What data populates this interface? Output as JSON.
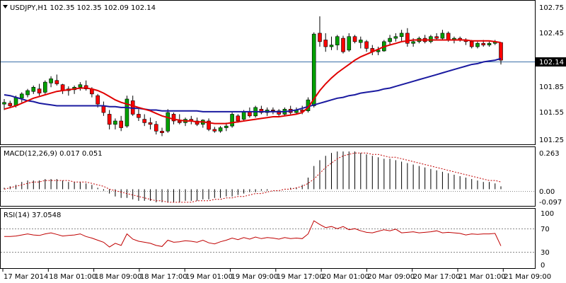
{
  "header": {
    "main": "USDJPY,H1  102.35 102.35 102.09 102.14",
    "macd": "MACD(12,26,9) 0.017 0.051",
    "rsi": "RSI(14) 37.0548"
  },
  "price_axis": {
    "ticks": [
      "102.75",
      "102.45",
      "101.85",
      "101.55",
      "101.25"
    ],
    "current": "102.14"
  },
  "macd_axis": {
    "ticks": [
      "0.263",
      "0.00",
      "-0.097"
    ]
  },
  "rsi_axis": {
    "ticks": [
      "100",
      "70",
      "30",
      "0"
    ]
  },
  "time_axis": {
    "labels": [
      "17 Mar 2014",
      "18 Mar 01:00",
      "18 Mar 09:00",
      "18 Mar 17:00",
      "19 Mar 01:00",
      "19 Mar 09:00",
      "19 Mar 17:00",
      "20 Mar 01:00",
      "20 Mar 09:00",
      "20 Mar 17:00",
      "21 Mar 01:00",
      "21 Mar 09:00"
    ]
  },
  "colors": {
    "bull": "#00a000",
    "bear": "#ff0000",
    "wick": "#000000",
    "ma_fast": "#e00000",
    "ma_slow": "#1a1aa0",
    "macd_hist": "#000000",
    "macd_signal": "#c00000",
    "rsi": "#c00000",
    "grid": "#888888",
    "current_line": "#3c6fa8"
  },
  "chart_data": [
    {
      "type": "candlestick",
      "symbol": "USDJPY,H1",
      "ylim": [
        101.16,
        102.82
      ],
      "candles": [
        [
          101.62,
          101.68,
          101.55,
          101.64
        ],
        [
          101.63,
          101.66,
          101.57,
          101.6
        ],
        [
          101.6,
          101.72,
          101.58,
          101.7
        ],
        [
          101.69,
          101.76,
          101.64,
          101.74
        ],
        [
          101.73,
          101.8,
          101.7,
          101.78
        ],
        [
          101.77,
          101.84,
          101.74,
          101.82
        ],
        [
          101.8,
          101.86,
          101.72,
          101.75
        ],
        [
          101.76,
          101.9,
          101.74,
          101.88
        ],
        [
          101.87,
          101.95,
          101.82,
          101.92
        ],
        [
          101.9,
          101.97,
          101.84,
          101.86
        ],
        [
          101.85,
          101.86,
          101.74,
          101.78
        ],
        [
          101.78,
          101.83,
          101.72,
          101.8
        ],
        [
          101.79,
          101.84,
          101.74,
          101.82
        ],
        [
          101.82,
          101.88,
          101.78,
          101.85
        ],
        [
          101.84,
          101.9,
          101.78,
          101.8
        ],
        [
          101.8,
          101.82,
          101.7,
          101.74
        ],
        [
          101.72,
          101.74,
          101.58,
          101.62
        ],
        [
          101.6,
          101.65,
          101.48,
          101.52
        ],
        [
          101.5,
          101.55,
          101.32,
          101.38
        ],
        [
          101.38,
          101.45,
          101.32,
          101.42
        ],
        [
          101.42,
          101.48,
          101.3,
          101.34
        ],
        [
          101.36,
          101.72,
          101.34,
          101.68
        ],
        [
          101.66,
          101.72,
          101.48,
          101.5
        ],
        [
          101.5,
          101.56,
          101.42,
          101.46
        ],
        [
          101.44,
          101.5,
          101.36,
          101.4
        ],
        [
          101.4,
          101.46,
          101.32,
          101.38
        ],
        [
          101.38,
          101.42,
          101.26,
          101.3
        ],
        [
          101.3,
          101.34,
          101.24,
          101.28
        ],
        [
          101.3,
          101.56,
          101.28,
          101.52
        ],
        [
          101.5,
          101.52,
          101.38,
          101.42
        ],
        [
          101.42,
          101.5,
          101.38,
          101.4
        ],
        [
          101.4,
          101.46,
          101.36,
          101.44
        ],
        [
          101.44,
          101.48,
          101.38,
          101.42
        ],
        [
          101.42,
          101.46,
          101.36,
          101.38
        ],
        [
          101.38,
          101.44,
          101.34,
          101.43
        ],
        [
          101.42,
          101.45,
          101.3,
          101.32
        ],
        [
          101.32,
          101.35,
          101.28,
          101.3
        ],
        [
          101.3,
          101.36,
          101.28,
          101.34
        ],
        [
          101.34,
          101.4,
          101.3,
          101.36
        ],
        [
          101.36,
          101.52,
          101.34,
          101.5
        ],
        [
          101.48,
          101.5,
          101.4,
          101.42
        ],
        [
          101.44,
          101.55,
          101.42,
          101.53
        ],
        [
          101.53,
          101.58,
          101.46,
          101.48
        ],
        [
          101.48,
          101.6,
          101.46,
          101.58
        ],
        [
          101.56,
          101.6,
          101.5,
          101.52
        ],
        [
          101.52,
          101.58,
          101.48,
          101.55
        ],
        [
          101.55,
          101.58,
          101.5,
          101.54
        ],
        [
          101.54,
          101.56,
          101.48,
          101.5
        ],
        [
          101.5,
          101.58,
          101.48,
          101.56
        ],
        [
          101.56,
          101.6,
          101.5,
          101.52
        ],
        [
          101.52,
          101.58,
          101.5,
          101.55
        ],
        [
          101.55,
          101.6,
          101.5,
          101.53
        ],
        [
          101.54,
          101.7,
          101.52,
          101.67
        ],
        [
          101.6,
          102.47,
          101.58,
          102.45
        ],
        [
          102.46,
          102.66,
          102.3,
          102.36
        ],
        [
          102.38,
          102.46,
          102.24,
          102.3
        ],
        [
          102.3,
          102.42,
          102.26,
          102.32
        ],
        [
          102.32,
          102.44,
          102.26,
          102.42
        ],
        [
          102.4,
          102.43,
          102.22,
          102.24
        ],
        [
          102.26,
          102.46,
          102.24,
          102.42
        ],
        [
          102.42,
          102.44,
          102.34,
          102.36
        ],
        [
          102.35,
          102.42,
          102.28,
          102.38
        ],
        [
          102.36,
          102.38,
          102.24,
          102.28
        ],
        [
          102.28,
          102.32,
          102.2,
          102.24
        ],
        [
          102.24,
          102.3,
          102.2,
          102.26
        ],
        [
          102.25,
          102.38,
          102.24,
          102.36
        ],
        [
          102.36,
          102.44,
          102.32,
          102.4
        ],
        [
          102.4,
          102.46,
          102.36,
          102.42
        ],
        [
          102.42,
          102.5,
          102.36,
          102.46
        ],
        [
          102.46,
          102.52,
          102.3,
          102.34
        ],
        [
          102.34,
          102.4,
          102.3,
          102.36
        ],
        [
          102.36,
          102.42,
          102.34,
          102.4
        ],
        [
          102.4,
          102.44,
          102.34,
          102.36
        ],
        [
          102.36,
          102.44,
          102.34,
          102.42
        ],
        [
          102.42,
          102.46,
          102.38,
          102.4
        ],
        [
          102.4,
          102.5,
          102.38,
          102.46
        ],
        [
          102.46,
          102.48,
          102.36,
          102.38
        ],
        [
          102.38,
          102.42,
          102.34,
          102.4
        ],
        [
          102.4,
          102.42,
          102.36,
          102.38
        ],
        [
          102.38,
          102.4,
          102.32,
          102.36
        ],
        [
          102.36,
          102.38,
          102.28,
          102.3
        ],
        [
          102.3,
          102.36,
          102.28,
          102.34
        ],
        [
          102.34,
          102.38,
          102.3,
          102.32
        ],
        [
          102.32,
          102.36,
          102.3,
          102.34
        ],
        [
          102.34,
          102.38,
          102.32,
          102.36
        ],
        [
          102.35,
          102.35,
          102.09,
          102.14
        ]
      ],
      "ma_fast": [
        101.56,
        101.58,
        101.6,
        101.63,
        101.66,
        101.69,
        101.71,
        101.73,
        101.75,
        101.77,
        101.78,
        101.79,
        101.8,
        101.81,
        101.81,
        101.8,
        101.78,
        101.75,
        101.71,
        101.67,
        101.64,
        101.62,
        101.6,
        101.58,
        101.56,
        101.54,
        101.51,
        101.48,
        101.46,
        101.44,
        101.43,
        101.42,
        101.42,
        101.41,
        101.41,
        101.4,
        101.39,
        101.39,
        101.39,
        101.4,
        101.41,
        101.42,
        101.43,
        101.44,
        101.45,
        101.46,
        101.47,
        101.47,
        101.48,
        101.49,
        101.5,
        101.52,
        101.58,
        101.68,
        101.78,
        101.86,
        101.93,
        101.99,
        102.04,
        102.09,
        102.14,
        102.18,
        102.21,
        102.24,
        102.27,
        102.3,
        102.32,
        102.34,
        102.36,
        102.37,
        102.38,
        102.38,
        102.38,
        102.38,
        102.38,
        102.38,
        102.38,
        102.38,
        102.38,
        102.38,
        102.37,
        102.37,
        102.37,
        102.37,
        102.36,
        102.35
      ],
      "ma_slow": [
        101.73,
        101.72,
        101.7,
        101.68,
        101.66,
        101.65,
        101.63,
        101.62,
        101.61,
        101.6,
        101.6,
        101.6,
        101.6,
        101.6,
        101.6,
        101.6,
        101.6,
        101.6,
        101.59,
        101.59,
        101.58,
        101.58,
        101.57,
        101.57,
        101.56,
        101.55,
        101.55,
        101.54,
        101.54,
        101.54,
        101.54,
        101.54,
        101.54,
        101.54,
        101.53,
        101.53,
        101.53,
        101.53,
        101.53,
        101.53,
        101.53,
        101.53,
        101.53,
        101.53,
        101.53,
        101.53,
        101.53,
        101.53,
        101.53,
        101.54,
        101.55,
        101.57,
        101.59,
        101.61,
        101.63,
        101.65,
        101.67,
        101.69,
        101.7,
        101.72,
        101.73,
        101.75,
        101.76,
        101.77,
        101.78,
        101.8,
        101.81,
        101.83,
        101.85,
        101.87,
        101.89,
        101.91,
        101.93,
        101.95,
        101.97,
        101.99,
        102.01,
        102.03,
        102.05,
        102.07,
        102.09,
        102.1,
        102.12,
        102.13,
        102.14,
        102.16
      ]
    },
    {
      "type": "macd",
      "params": "12,26,9",
      "ylim": [
        -0.11,
        0.28
      ],
      "histogram": [
        0.01,
        0.02,
        0.03,
        0.05,
        0.06,
        0.06,
        0.06,
        0.07,
        0.07,
        0.07,
        0.06,
        0.05,
        0.05,
        0.05,
        0.04,
        0.03,
        0.01,
        -0.01,
        -0.03,
        -0.05,
        -0.06,
        -0.06,
        -0.07,
        -0.08,
        -0.08,
        -0.08,
        -0.09,
        -0.09,
        -0.09,
        -0.09,
        -0.09,
        -0.08,
        -0.08,
        -0.08,
        -0.07,
        -0.07,
        -0.06,
        -0.06,
        -0.05,
        -0.05,
        -0.04,
        -0.03,
        -0.02,
        -0.02,
        -0.01,
        -0.01,
        0.0,
        0.0,
        0.0,
        0.01,
        0.01,
        0.03,
        0.08,
        0.16,
        0.2,
        0.23,
        0.25,
        0.26,
        0.26,
        0.26,
        0.26,
        0.25,
        0.24,
        0.23,
        0.22,
        0.21,
        0.21,
        0.2,
        0.19,
        0.18,
        0.17,
        0.16,
        0.15,
        0.14,
        0.13,
        0.12,
        0.11,
        0.1,
        0.09,
        0.08,
        0.07,
        0.06,
        0.05,
        0.05,
        0.04,
        0.02
      ],
      "signal": [
        0.0,
        0.01,
        0.02,
        0.03,
        0.04,
        0.05,
        0.05,
        0.06,
        0.06,
        0.06,
        0.06,
        0.06,
        0.05,
        0.05,
        0.05,
        0.04,
        0.03,
        0.02,
        0.0,
        -0.01,
        -0.02,
        -0.03,
        -0.04,
        -0.05,
        -0.06,
        -0.07,
        -0.08,
        -0.08,
        -0.09,
        -0.09,
        -0.09,
        -0.09,
        -0.09,
        -0.08,
        -0.08,
        -0.08,
        -0.07,
        -0.07,
        -0.06,
        -0.06,
        -0.05,
        -0.05,
        -0.04,
        -0.03,
        -0.03,
        -0.02,
        -0.01,
        -0.01,
        0.0,
        0.0,
        0.01,
        0.02,
        0.04,
        0.07,
        0.11,
        0.15,
        0.18,
        0.21,
        0.23,
        0.24,
        0.25,
        0.25,
        0.25,
        0.24,
        0.24,
        0.23,
        0.22,
        0.22,
        0.21,
        0.2,
        0.19,
        0.18,
        0.17,
        0.16,
        0.15,
        0.14,
        0.13,
        0.12,
        0.11,
        0.1,
        0.09,
        0.08,
        0.07,
        0.06,
        0.06,
        0.05
      ]
    },
    {
      "type": "line",
      "name": "RSI(14)",
      "ylim": [
        0,
        100
      ],
      "levels": [
        70,
        30
      ],
      "values": [
        55,
        55,
        56,
        58,
        60,
        58,
        57,
        60,
        62,
        59,
        56,
        57,
        58,
        60,
        55,
        52,
        48,
        44,
        35,
        42,
        38,
        60,
        50,
        46,
        44,
        42,
        38,
        36,
        48,
        44,
        45,
        47,
        46,
        44,
        48,
        43,
        41,
        45,
        48,
        52,
        49,
        53,
        50,
        54,
        51,
        53,
        52,
        50,
        53,
        51,
        52,
        51,
        60,
        85,
        78,
        72,
        74,
        70,
        74,
        68,
        70,
        66,
        63,
        62,
        65,
        68,
        66,
        69,
        62,
        63,
        64,
        62,
        63,
        64,
        66,
        62,
        63,
        62,
        61,
        58,
        60,
        59,
        60,
        60,
        61,
        37
      ]
    }
  ]
}
